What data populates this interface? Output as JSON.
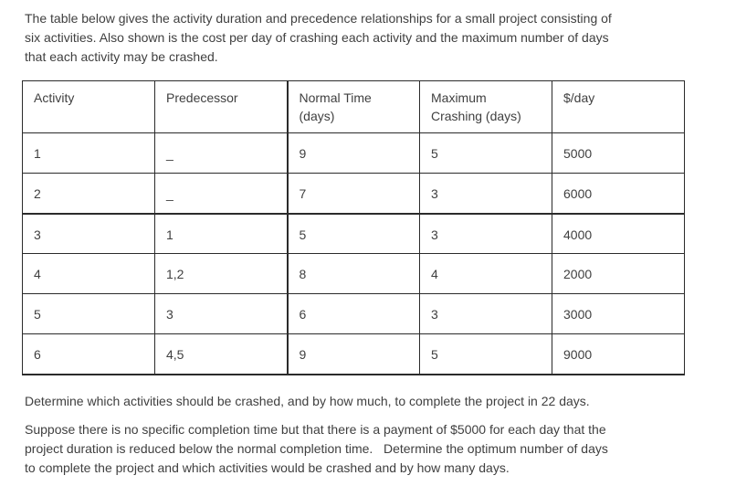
{
  "colors": {
    "background": "#ffffff",
    "text": "#3f3f3f",
    "table_border": "#2b2b2b"
  },
  "intro": {
    "lines": [
      "The table below gives the activity duration and precedence relationships for a small project consisting of",
      "six activities. Also shown is the cost per day of crashing each activity and the maximum number of days",
      "that each activity may be crashed."
    ]
  },
  "table": {
    "headers": {
      "activity": "Activity",
      "predecessor": "Predecessor",
      "normal_time": [
        "Normal Time",
        "(days)"
      ],
      "max_crashing": [
        "Maximum",
        "Crashing (days)"
      ],
      "cost_per_day": "$/day"
    },
    "rows": [
      [
        "1",
        "_",
        "9",
        "5",
        "5000"
      ],
      [
        "2",
        "_",
        "7",
        "3",
        "6000"
      ],
      [
        "3",
        "1",
        "5",
        "3",
        "4000"
      ],
      [
        "4",
        "1,2",
        "8",
        "4",
        "2000"
      ],
      [
        "5",
        "3",
        "6",
        "3",
        "3000"
      ],
      [
        "6",
        "4,5",
        "9",
        "5",
        "9000"
      ]
    ]
  },
  "questions": {
    "q1": "Determine which activities should be crashed, and by how much, to complete the project in 22 days.",
    "q2_lines": [
      "Suppose there is no specific completion time but that there is a payment of $5000 for each day that the",
      "project duration is reduced below the normal completion time.   Determine the optimum number of days",
      "to complete the project and which activities would be crashed and by how many days."
    ]
  }
}
